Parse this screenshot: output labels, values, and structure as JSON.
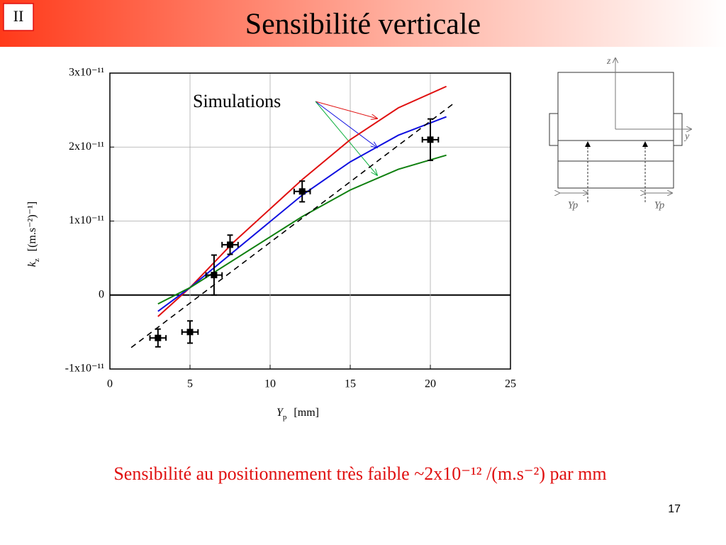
{
  "slide": {
    "section": "II",
    "title": "Sensibilité verticale",
    "caption": "Sensibilité au positionnement très faible ~2x10⁻¹² /(m.s⁻²) par mm",
    "page_number": "17"
  },
  "diagram": {
    "z_label": "z",
    "y_label": "y",
    "dimension_labels": [
      "Yp",
      "Yp"
    ]
  },
  "chart_data": {
    "type": "line",
    "annotation": "Simulations",
    "xlabel": {
      "symbol": "Y",
      "subscript": "p",
      "unit": "[mm]"
    },
    "ylabel": {
      "symbol": "k",
      "subscript": "z",
      "unit": "[(m.s⁻²)⁻¹]"
    },
    "xlim": [
      0,
      25
    ],
    "xticks": [
      0,
      5,
      10,
      15,
      20,
      25
    ],
    "ylim": [
      -1e-11,
      3e-11
    ],
    "yticks": [
      {
        "value": -1e-11,
        "label": "-1x10⁻¹¹"
      },
      0,
      {
        "value": 1e-11,
        "label": "1x10⁻¹¹"
      },
      {
        "value": 2e-11,
        "label": "2x10⁻¹¹"
      },
      {
        "value": 3e-11,
        "label": "3x10⁻¹¹"
      }
    ],
    "grid": true,
    "series": [
      {
        "type": "line",
        "color": "#e01010",
        "x": [
          3,
          5,
          7.7,
          12,
          15,
          18,
          21
        ],
        "values": [
          -2.9e-12,
          1e-12,
          7.1e-12,
          1.56e-11,
          2.1e-11,
          2.53e-11,
          2.82e-11
        ]
      },
      {
        "type": "line",
        "color": "#1010e0",
        "x": [
          3,
          5,
          12,
          15,
          18,
          21
        ],
        "values": [
          -2.2e-12,
          1e-12,
          1.35e-11,
          1.8e-11,
          2.16e-11,
          2.41e-11
        ]
      },
      {
        "type": "line",
        "color": "#108010",
        "x": [
          3,
          5,
          12,
          15,
          18,
          21
        ],
        "values": [
          -1.2e-12,
          1e-12,
          1.06e-11,
          1.42e-11,
          1.7e-11,
          1.89e-11
        ]
      },
      {
        "type": "line",
        "color": "#000000",
        "linestyle": "dashed",
        "x": [
          1.33,
          21.46
        ],
        "values": [
          -7.1e-12,
          2.59e-11
        ]
      },
      {
        "type": "scatter",
        "color": "#000000",
        "x": [
          3,
          5,
          6.5,
          7.5,
          12,
          20
        ],
        "values": [
          -5.8e-12,
          -5e-12,
          2.7e-12,
          6.8e-12,
          1.4e-11,
          2.1e-11
        ],
        "xerr": [
          0.5,
          0.5,
          0.5,
          0.5,
          0.5,
          0.5
        ],
        "yerr": [
          1.2e-12,
          1.5e-12,
          2.7e-12,
          1.3e-12,
          1.4e-12,
          2.8e-12
        ]
      }
    ]
  }
}
